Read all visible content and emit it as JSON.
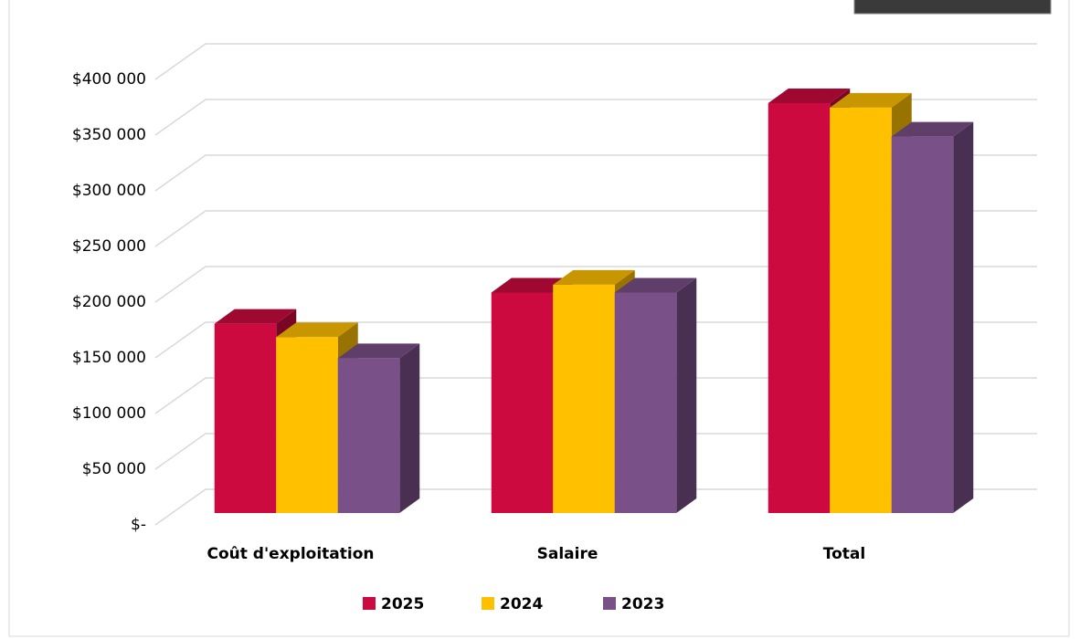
{
  "chart_data": {
    "type": "bar3d",
    "categories": [
      "Coût d'exploitation",
      "Salaire",
      "Total"
    ],
    "series": [
      {
        "name": "2025",
        "color": "#cc0a3f",
        "values": [
          170000,
          198000,
          368000
        ]
      },
      {
        "name": "2024",
        "color": "#ffc000",
        "values": [
          158000,
          205000,
          364000
        ]
      },
      {
        "name": "2023",
        "color": "#7a5088",
        "values": [
          139000,
          198000,
          338000
        ]
      }
    ],
    "ylim": [
      0,
      400000
    ],
    "yticks": [
      {
        "value": 0,
        "label": "$-"
      },
      {
        "value": 50000,
        "label": "$50 000"
      },
      {
        "value": 100000,
        "label": "$100 000"
      },
      {
        "value": 150000,
        "label": "$150 000"
      },
      {
        "value": 200000,
        "label": "$200 000"
      },
      {
        "value": 250000,
        "label": "$250 000"
      },
      {
        "value": 300000,
        "label": "$300 000"
      },
      {
        "value": 350000,
        "label": "$350 000"
      },
      {
        "value": 400000,
        "label": "$400 000"
      }
    ],
    "grid": true,
    "legend": "bottom"
  }
}
